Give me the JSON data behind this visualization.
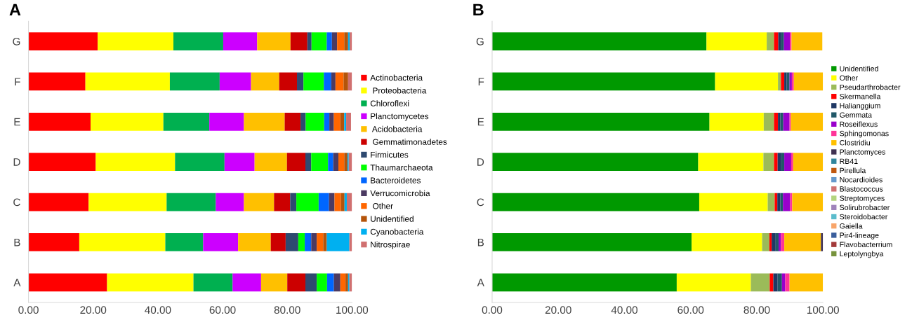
{
  "chart_data": [
    {
      "type": "bar",
      "title": "A",
      "orientation": "horizontal",
      "stacked": true,
      "legend": "right",
      "grid": false,
      "categories": [
        "G",
        "F",
        "E",
        "D",
        "C",
        "B",
        "A"
      ],
      "xlim": [
        0,
        100
      ],
      "xticks": [
        {
          "value": 0,
          "label": "0.00"
        },
        {
          "value": 20,
          "label": "20.00"
        },
        {
          "value": 40,
          "label": "40.00"
        },
        {
          "value": 60,
          "label": "60.00"
        },
        {
          "value": 80,
          "label": "80.00"
        },
        {
          "value": 100,
          "label": "100.00"
        }
      ],
      "series": [
        {
          "name": "Actinobacteria",
          "color": "#ff0000",
          "values": [
            21.4,
            17.6,
            19.2,
            20.8,
            18.6,
            15.7,
            24.3
          ]
        },
        {
          "name": " Proteobacteria",
          "color": "#ffff00",
          "values": [
            23.4,
            26.1,
            22.5,
            24.5,
            24.1,
            26.6,
            26.7
          ]
        },
        {
          "name": "Chloroflexi",
          "color": "#00b050",
          "values": [
            15.4,
            15.4,
            14.2,
            15.3,
            15.2,
            11.7,
            12.1
          ]
        },
        {
          "name": "Planctomycetes",
          "color": "#cc00ff",
          "values": [
            10.5,
            9.7,
            10.7,
            9.3,
            8.7,
            10.8,
            8.8
          ]
        },
        {
          "name": " Acidobacteria",
          "color": "#ffc000",
          "values": [
            10.3,
            8.7,
            12.6,
            10.0,
            9.3,
            10.1,
            8.1
          ]
        },
        {
          "name": " Gemmatimonadetes",
          "color": "#cc0000",
          "values": [
            5.2,
            5.5,
            4.9,
            5.7,
            5.0,
            4.6,
            5.6
          ]
        },
        {
          "name": "Firmicutes",
          "color": "#2e4a70",
          "values": [
            1.3,
            2.0,
            1.6,
            1.8,
            1.9,
            3.9,
            3.5
          ]
        },
        {
          "name": "Thaumarchaeota",
          "color": "#00ff00",
          "values": [
            4.7,
            6.3,
            5.7,
            5.2,
            6.9,
            2.0,
            3.2
          ]
        },
        {
          "name": "Bacteroidetes",
          "color": "#0066ff",
          "values": [
            1.6,
            2.3,
            1.6,
            1.6,
            3.2,
            2.0,
            2.1
          ]
        },
        {
          "name": "Verrucomicrobia",
          "color": "#4b3a62",
          "values": [
            1.6,
            1.3,
            1.4,
            1.6,
            1.7,
            1.7,
            2.0
          ]
        },
        {
          "name": " Other",
          "color": "#ff6600",
          "values": [
            2.2,
            2.5,
            2.0,
            1.8,
            2.0,
            2.0,
            1.6
          ]
        },
        {
          "name": "Unidentified",
          "color": "#b4540a",
          "values": [
            1.2,
            1.4,
            1.2,
            1.0,
            1.1,
            1.1,
            0.8
          ]
        },
        {
          "name": "Cyanobacteria",
          "color": "#00b0f0",
          "values": [
            0.5,
            0,
            0.6,
            0.4,
            0.7,
            7.0,
            0.4
          ]
        },
        {
          "name": "Nitrospirae",
          "color": "#d07070",
          "values": [
            0.7,
            1.2,
            1.5,
            1.0,
            1.6,
            0.8,
            0.8
          ]
        }
      ]
    },
    {
      "type": "bar",
      "title": "B",
      "orientation": "horizontal",
      "stacked": true,
      "legend": "right",
      "grid": false,
      "categories": [
        "G",
        "F",
        "E",
        "D",
        "C",
        "B",
        "A"
      ],
      "xlim": [
        0,
        100
      ],
      "xticks": [
        {
          "value": 0,
          "label": "0.00"
        },
        {
          "value": 20,
          "label": "20.00"
        },
        {
          "value": 40,
          "label": "40.00"
        },
        {
          "value": 60,
          "label": "60.00"
        },
        {
          "value": 80,
          "label": "80.00"
        },
        {
          "value": 100,
          "label": "100.00"
        }
      ],
      "series": [
        {
          "name": "Unidentified",
          "color": "#009900",
          "values": [
            64.8,
            67.4,
            65.7,
            62.3,
            62.6,
            60.3,
            55.8
          ]
        },
        {
          "name": "Other",
          "color": "#ffff00",
          "values": [
            18.2,
            19.0,
            16.4,
            19.7,
            20.7,
            21.3,
            22.4
          ]
        },
        {
          "name": "Pseudarthrobacter",
          "color": "#9bbb59",
          "values": [
            2.2,
            0.9,
            3.1,
            3.2,
            2.1,
            2.2,
            5.7
          ]
        },
        {
          "name": "Skermanella",
          "color": "#ff0000",
          "values": [
            1.3,
            1.0,
            1.2,
            1.1,
            0.8,
            0.7,
            1.1
          ]
        },
        {
          "name": "Halianggium",
          "color": "#1f3864",
          "values": [
            0.9,
            0.7,
            0.7,
            1.1,
            0.9,
            1.2,
            1.3
          ]
        },
        {
          "name": "Gemmata",
          "color": "#215868",
          "values": [
            0.8,
            0.9,
            0.9,
            0.9,
            0.8,
            0.9,
            1.3
          ]
        },
        {
          "name": "Roseiflexus",
          "color": "#9900cc",
          "values": [
            1.8,
            0.7,
            1.9,
            2.1,
            2.2,
            0.7,
            1.0
          ]
        },
        {
          "name": "Sphingomonas",
          "color": "#ff3399",
          "values": [
            0.5,
            0.6,
            0.4,
            0.6,
            0.6,
            1.0,
            1.3
          ]
        },
        {
          "name": "Clostridiu",
          "color": "#ffc000",
          "values": [
            9.3,
            8.8,
            9.7,
            9.0,
            9.3,
            11.1,
            10.1
          ]
        },
        {
          "name": "Planctomyces",
          "color": "#403151",
          "values": [
            0,
            0,
            0,
            0,
            0,
            0.6,
            0
          ]
        },
        {
          "name": "RB41",
          "color": "#31859c",
          "values": [
            0,
            0,
            0,
            0,
            0,
            0,
            0
          ]
        },
        {
          "name": "Pirellula",
          "color": "#c0580f",
          "values": [
            0,
            0,
            0,
            0,
            0,
            0,
            0
          ]
        },
        {
          "name": "Nocardioides",
          "color": "#6699cc",
          "values": [
            0,
            0,
            0,
            0,
            0,
            0,
            0
          ]
        },
        {
          "name": "Blastococcus",
          "color": "#d07070",
          "values": [
            0,
            0,
            0,
            0,
            0,
            0,
            0
          ]
        },
        {
          "name": "Streptomyces",
          "color": "#b3d47e",
          "values": [
            0,
            0,
            0,
            0,
            0,
            0,
            0
          ]
        },
        {
          "name": "Solirubrobacter",
          "color": "#9f83bb",
          "values": [
            0,
            0,
            0,
            0,
            0,
            0,
            0
          ]
        },
        {
          "name": "Steroidobacter",
          "color": "#5bbccc",
          "values": [
            0,
            0,
            0,
            0,
            0,
            0,
            0
          ]
        },
        {
          "name": "Gaiella",
          "color": "#f8a56a",
          "values": [
            0,
            0,
            0,
            0,
            0,
            0,
            0
          ]
        },
        {
          "name": "Pir4-lineage",
          "color": "#3a5e9c",
          "values": [
            0,
            0,
            0,
            0,
            0,
            0,
            0
          ]
        },
        {
          "name": "Flavobacterrium",
          "color": "#a33a3a",
          "values": [
            0,
            0,
            0,
            0,
            0,
            0,
            0
          ]
        },
        {
          "name": "Leptolyngbya",
          "color": "#77933c",
          "values": [
            0,
            0,
            0,
            0,
            0,
            0,
            0
          ]
        }
      ]
    }
  ]
}
